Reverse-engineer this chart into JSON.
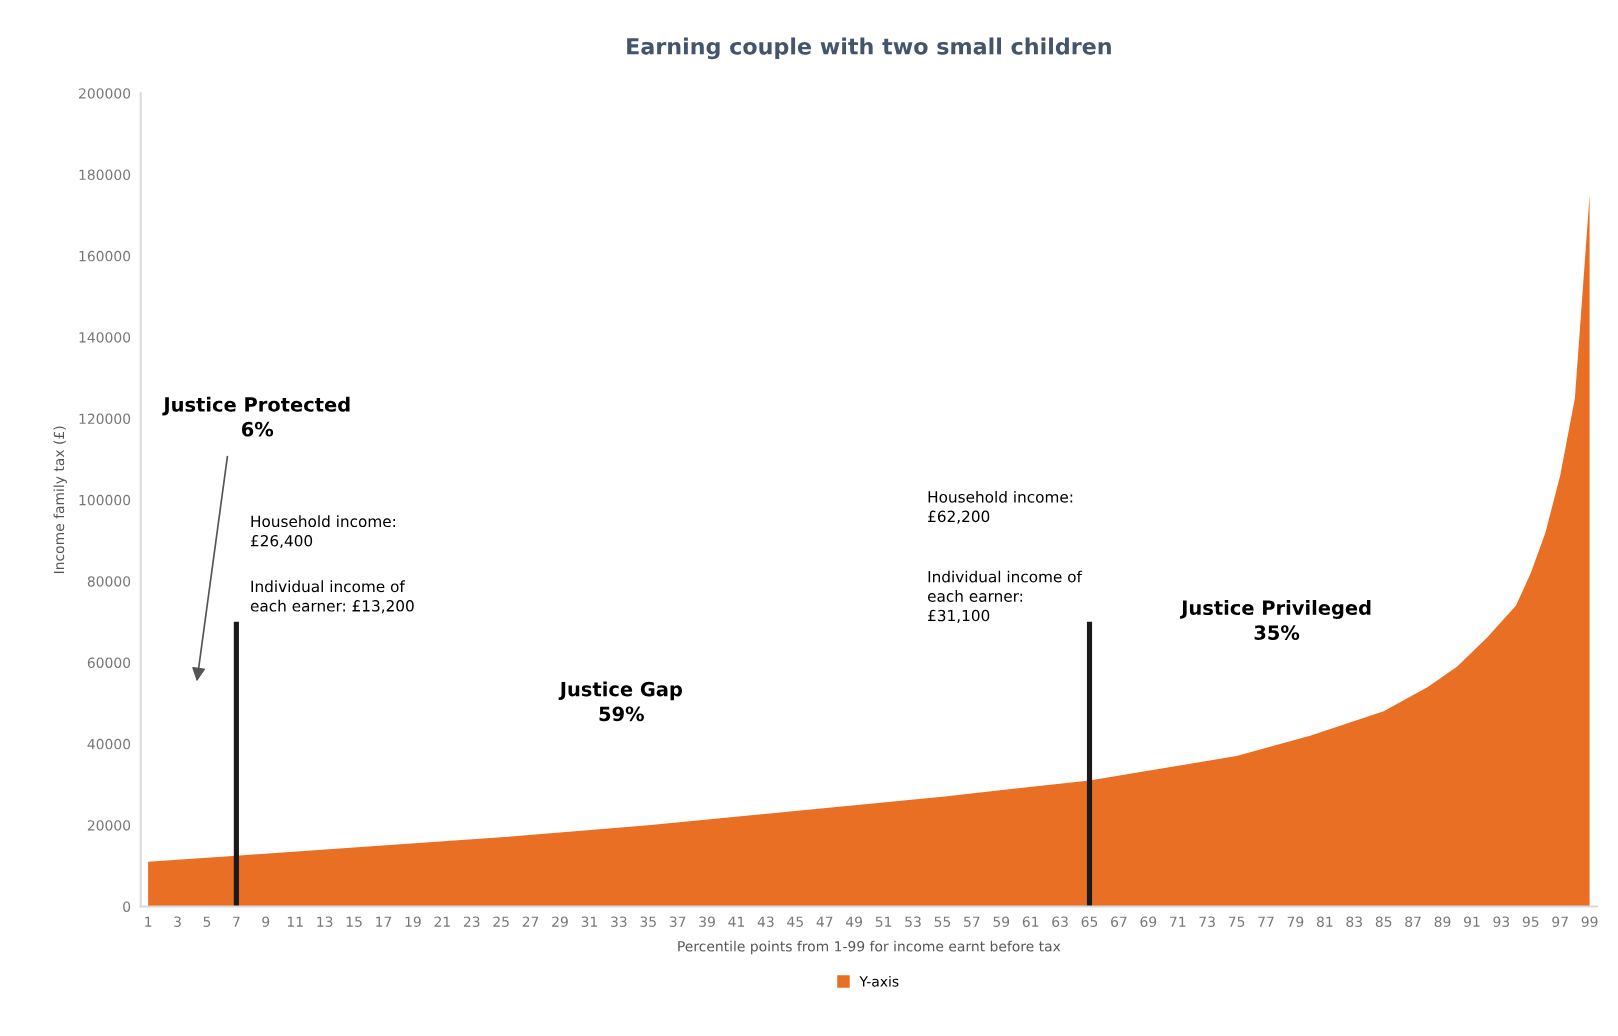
{
  "chart_data": {
    "type": "area",
    "title": "Earning couple with two small children",
    "xlabel": "Percentile points from 1-99 for income earnt before tax",
    "ylabel": "Income family tax (£)",
    "xlim": [
      0.5,
      99.5
    ],
    "xticks": [
      1,
      3,
      5,
      7,
      9,
      11,
      13,
      15,
      17,
      19,
      21,
      23,
      25,
      27,
      29,
      31,
      33,
      35,
      37,
      39,
      41,
      43,
      45,
      47,
      49,
      51,
      53,
      55,
      57,
      59,
      61,
      63,
      65,
      67,
      69,
      71,
      73,
      75,
      77,
      79,
      81,
      83,
      85,
      87,
      89,
      91,
      93,
      95,
      97,
      99
    ],
    "ylim": [
      0,
      200000
    ],
    "yticks": [
      0,
      20000,
      40000,
      60000,
      80000,
      100000,
      120000,
      140000,
      160000,
      180000,
      200000
    ],
    "grid": false,
    "legend": "bottom",
    "series": [
      {
        "name": "Y-axis",
        "color": "#e86f23",
        "x": [
          1,
          7,
          15,
          25,
          35,
          45,
          55,
          65,
          70,
          75,
          80,
          85,
          88,
          90,
          92,
          94,
          95,
          96,
          97,
          98,
          99
        ],
        "values": [
          11000,
          12500,
          14500,
          17000,
          20000,
          23500,
          27000,
          31000,
          34000,
          37000,
          42000,
          48000,
          54000,
          59000,
          66000,
          74000,
          82000,
          92000,
          106000,
          125000,
          175000
        ]
      },
      {
        "type": "bar",
        "color": "#1a1a1a",
        "x": [
          7,
          65
        ],
        "values": [
          70000,
          70000
        ]
      }
    ],
    "annotations": [
      "Justice Protected\n6%",
      "Household income:\n£26,400",
      "Individual income of\neach earner: £13,200",
      "Justice Gap\n59%",
      "Household income:\n£62,200",
      "Individual income of\neach earner:\n£31,100",
      "Justice Privileged\n35%"
    ]
  }
}
